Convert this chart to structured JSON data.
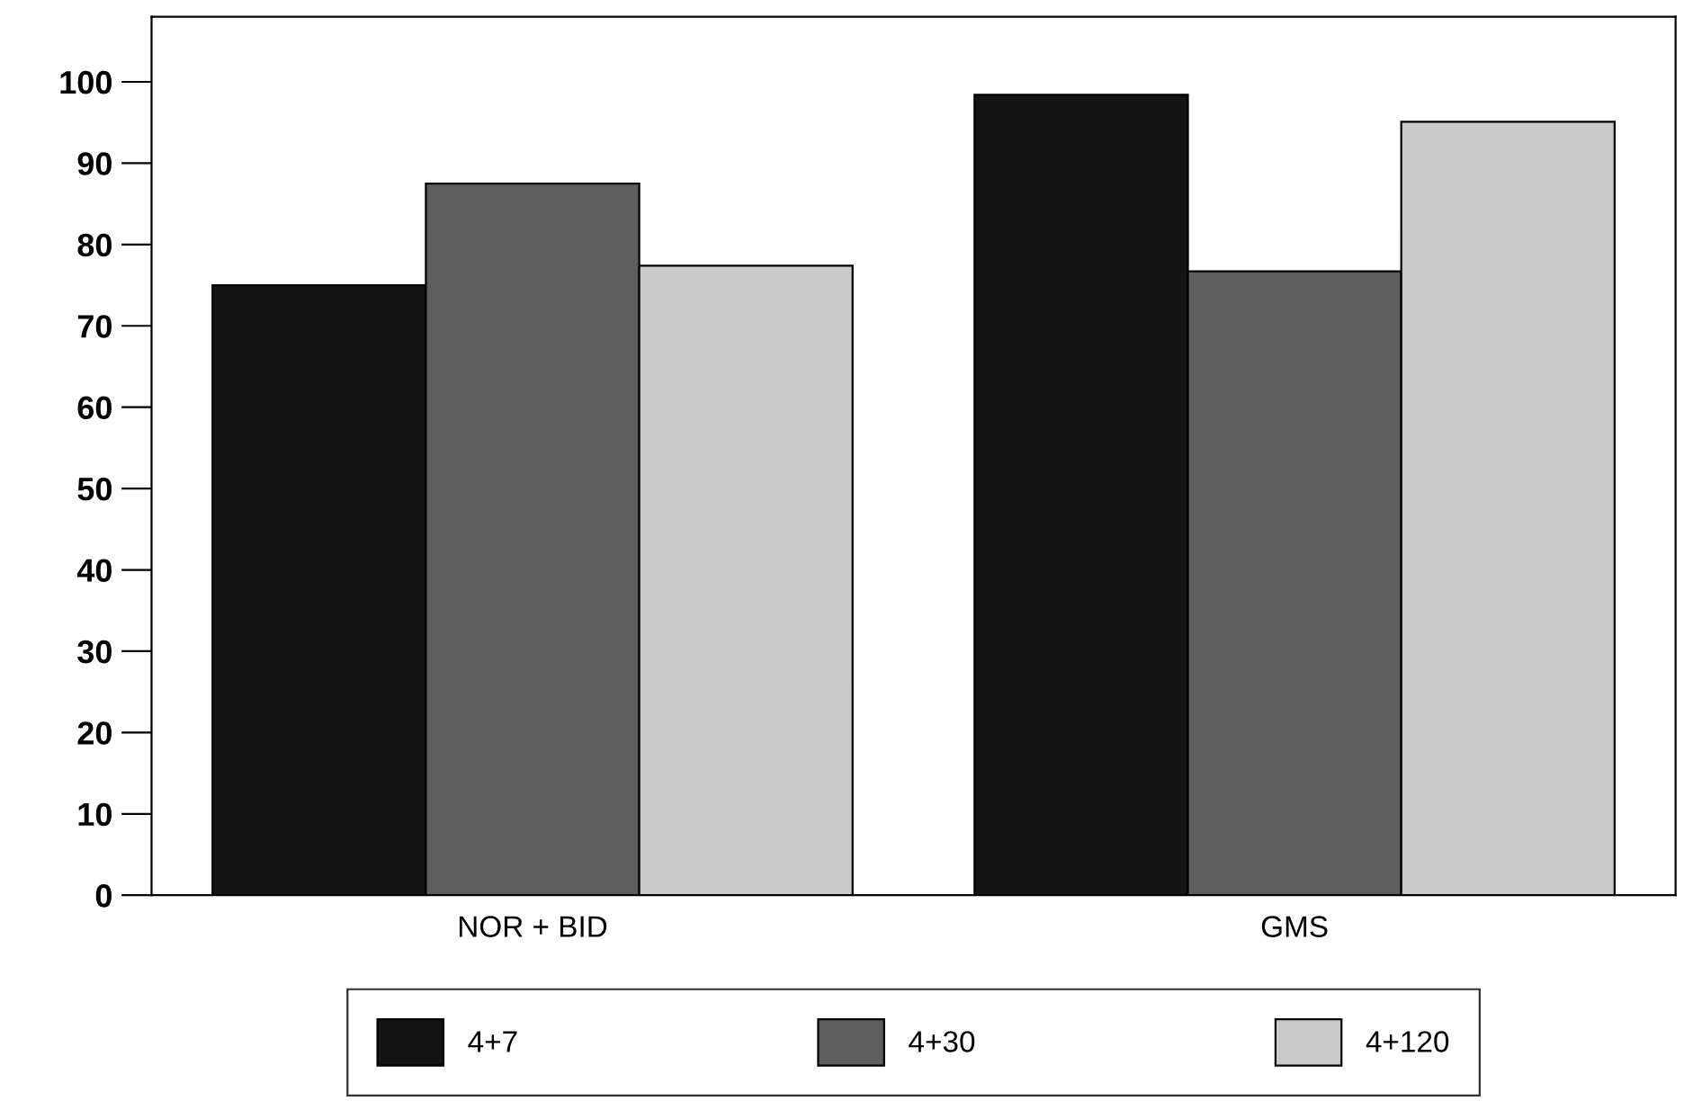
{
  "chart_data": {
    "type": "bar",
    "categories": [
      "NOR + BID",
      "GMS"
    ],
    "series": [
      {
        "name": "4+7",
        "color": "#141414",
        "values": [
          75,
          98.4
        ]
      },
      {
        "name": "4+30",
        "color": "#5e5e5e",
        "values": [
          87.5,
          76.7
        ]
      },
      {
        "name": "4+120",
        "color": "#c9c9c9",
        "values": [
          77.4,
          95.1
        ]
      }
    ],
    "ylim": [
      0,
      108
    ],
    "yticks": [
      0,
      10,
      20,
      30,
      40,
      50,
      60,
      70,
      80,
      90,
      100
    ],
    "grid": false,
    "legend": "bottom"
  }
}
